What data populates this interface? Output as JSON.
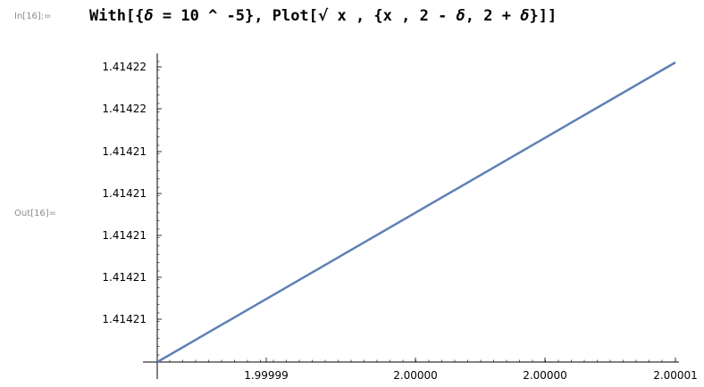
{
  "notebook": {
    "input_label": "In[16]:=",
    "output_label": "Out[16]=",
    "input_parts": [
      {
        "text": "With[{",
        "kind": "code"
      },
      {
        "text": "δ",
        "kind": "greek"
      },
      {
        "text": " = 10 ^ -5}, Plot[",
        "kind": "code"
      },
      {
        "text": "√",
        "kind": "sqrt"
      },
      {
        "text": " x , {x , 2 - ",
        "kind": "code"
      },
      {
        "text": "δ",
        "kind": "greek"
      },
      {
        "text": ", 2 + ",
        "kind": "code"
      },
      {
        "text": "δ",
        "kind": "greek"
      },
      {
        "text": "}]]",
        "kind": "code"
      }
    ]
  },
  "colors": {
    "curve": "#5E81B5",
    "axis": "#000000",
    "label": "#8c8c8c"
  },
  "chart_data": {
    "type": "line",
    "function": "Sqrt[x]",
    "x": [
      1.99999,
      2.00001
    ],
    "y": [
      1.41421,
      1.414217
    ],
    "xlim": [
      1.99999,
      2.00001
    ],
    "ylim": [
      1.41421,
      1.41422
    ],
    "x_ticks": [
      "1.99999",
      "2.00000",
      "2.00000",
      "2.00001"
    ],
    "y_ticks": [
      "1.41421",
      "1.41421",
      "1.41421",
      "1.41421",
      "1.41421",
      "1.41422",
      "1.41422"
    ],
    "grid": false
  }
}
